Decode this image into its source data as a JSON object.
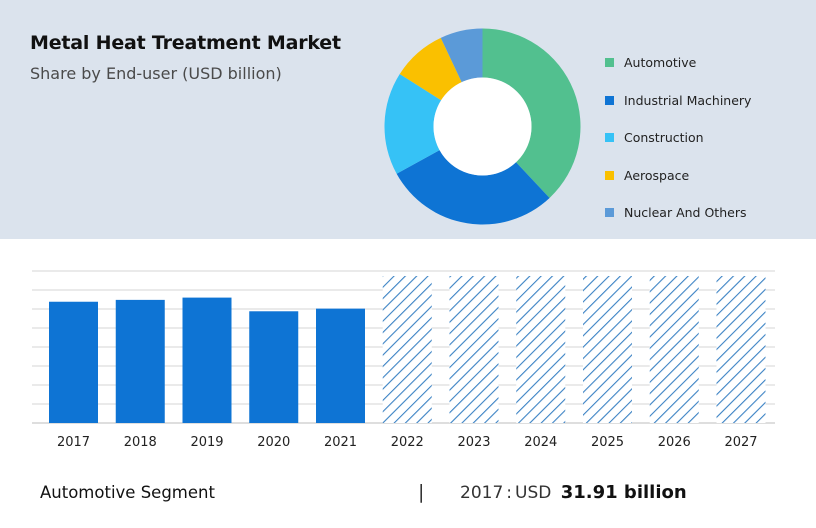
{
  "header": {
    "title": "Metal Heat Treatment Market",
    "subtitle": "Share by End-user (USD billion)"
  },
  "footer": {
    "segment": "Automotive Segment",
    "separator": "|",
    "year": "2017",
    "colon": ":",
    "currency": "USD",
    "value": "31.91 billion"
  },
  "chart_data": [
    {
      "type": "pie",
      "donut": true,
      "legend_position": "right",
      "series": [
        {
          "name": "Automotive",
          "value": 38,
          "color": "#52c08f"
        },
        {
          "name": "Industrial Machinery",
          "value": 29,
          "color": "#0e74d4"
        },
        {
          "name": "Construction",
          "value": 17,
          "color": "#36c2f6"
        },
        {
          "name": "Aerospace",
          "value": 9,
          "color": "#fac000"
        },
        {
          "name": "Nuclear And Others",
          "value": 7,
          "color": "#5b9ad8"
        }
      ]
    },
    {
      "type": "bar",
      "categories": [
        "2017",
        "2018",
        "2019",
        "2020",
        "2021",
        "2022",
        "2023",
        "2024",
        "2025",
        "2026",
        "2027"
      ],
      "values": [
        31.91,
        32.4,
        33.0,
        29.4,
        30.1,
        null,
        null,
        null,
        null,
        null,
        null
      ],
      "forecast": [
        false,
        false,
        false,
        false,
        false,
        true,
        true,
        true,
        true,
        true,
        true
      ],
      "ylim": [
        0,
        40
      ],
      "grid": true,
      "color": "#0e74d4",
      "forecast_color": "#3b82c4"
    }
  ]
}
